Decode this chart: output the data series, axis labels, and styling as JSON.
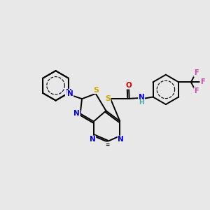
{
  "background_color": "#e8e8e8",
  "figsize": [
    3.0,
    3.0
  ],
  "dpi": 100,
  "colors": {
    "C": "#000000",
    "N": "#0000ee",
    "S": "#ccaa00",
    "O": "#dd0000",
    "F": "#cc44aa",
    "H": "#44aaaa",
    "bond": "#000000"
  },
  "bond_lw": 1.4,
  "font_size": 7.5
}
